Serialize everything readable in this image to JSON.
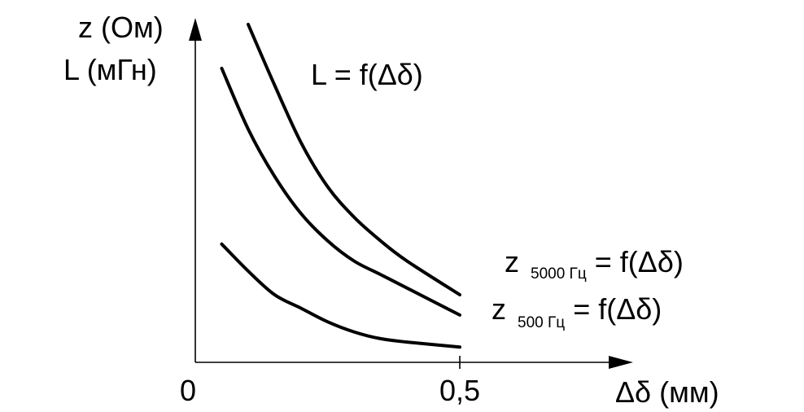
{
  "chart_data": {
    "type": "line",
    "ylabel_lines": [
      "z (Ом)",
      "L (мГн)"
    ],
    "xlabel": "Δδ (мм)",
    "xlim": [
      0,
      0.8
    ],
    "ylim": [
      0,
      10
    ],
    "x_ticks": [
      {
        "value": 0,
        "label": "0"
      },
      {
        "value": 0.5,
        "label": "0,5"
      }
    ],
    "series": [
      {
        "id": "L",
        "name": "L = f(Δδ)",
        "points": [
          [
            0.1,
            10.0
          ],
          [
            0.15,
            8.2
          ],
          [
            0.2,
            6.5
          ],
          [
            0.25,
            5.2
          ],
          [
            0.3,
            4.3
          ],
          [
            0.35,
            3.6
          ],
          [
            0.4,
            3.0
          ],
          [
            0.5,
            2.0
          ]
        ]
      },
      {
        "id": "z5000",
        "name_main": "z",
        "name_sub": "5000 Гц",
        "name_rest": " = f(Δδ)",
        "points": [
          [
            0.05,
            8.7
          ],
          [
            0.1,
            6.9
          ],
          [
            0.15,
            5.5
          ],
          [
            0.2,
            4.4
          ],
          [
            0.25,
            3.6
          ],
          [
            0.3,
            3.0
          ],
          [
            0.35,
            2.6
          ],
          [
            0.4,
            2.2
          ],
          [
            0.5,
            1.4
          ]
        ]
      },
      {
        "id": "z500",
        "name_main": "z",
        "name_sub": "500 Гц",
        "name_rest": " = f(Δδ)",
        "points": [
          [
            0.05,
            3.5
          ],
          [
            0.1,
            2.7
          ],
          [
            0.15,
            2.0
          ],
          [
            0.2,
            1.6
          ],
          [
            0.25,
            1.2
          ],
          [
            0.3,
            0.9
          ],
          [
            0.35,
            0.7
          ],
          [
            0.4,
            0.6
          ],
          [
            0.5,
            0.45
          ]
        ]
      }
    ]
  }
}
